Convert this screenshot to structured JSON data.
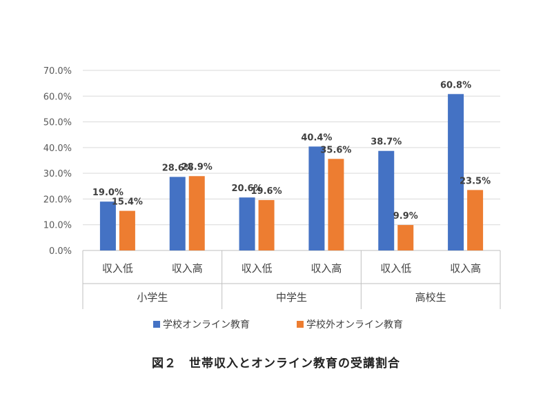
{
  "chart_data": {
    "type": "bar",
    "groups": [
      {
        "label": "小学生",
        "categories": [
          "収入低",
          "収入高"
        ]
      },
      {
        "label": "中学生",
        "categories": [
          "収入低",
          "収入高"
        ]
      },
      {
        "label": "高校生",
        "categories": [
          "収入低",
          "収入高"
        ]
      }
    ],
    "series": [
      {
        "name": "学校オンライン教育",
        "color": "#4472C4",
        "values": [
          19.0,
          28.6,
          20.6,
          40.4,
          38.7,
          60.8
        ],
        "labels": [
          "19.0%",
          "28.6%",
          "20.6%",
          "40.4%",
          "38.7%",
          "60.8%"
        ]
      },
      {
        "name": "学校外オンライン教育",
        "color": "#ED7D31",
        "values": [
          15.4,
          28.9,
          19.6,
          35.6,
          9.9,
          23.5
        ],
        "labels": [
          "15.4%",
          "28.9%",
          "19.6%",
          "35.6%",
          "9.9%",
          "23.5%"
        ]
      }
    ],
    "ylim": [
      0,
      70
    ],
    "yticks": [
      "0.0%",
      "10.0%",
      "20.0%",
      "30.0%",
      "40.0%",
      "50.0%",
      "60.0%",
      "70.0%"
    ],
    "grid": true,
    "legend_position": "bottom"
  },
  "caption": "図２　世帯収入とオンライン教育の受講割合"
}
